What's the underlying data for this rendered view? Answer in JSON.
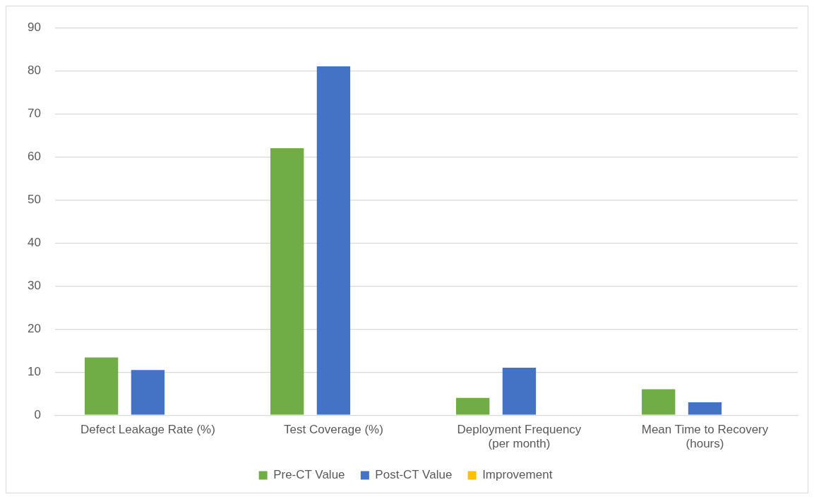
{
  "chart_data": {
    "type": "bar",
    "categories": [
      "Defect Leakage Rate (%)",
      "Test Coverage (%)",
      "Deployment Frequency (per month)",
      "Mean Time to Recovery (hours)"
    ],
    "series": [
      {
        "name": "Pre-CT Value",
        "color": "#70ad47",
        "values": [
          13.4,
          62,
          4,
          6
        ]
      },
      {
        "name": "Post-CT Value",
        "color": "#4472c4",
        "values": [
          10.5,
          81,
          11,
          3
        ]
      },
      {
        "name": "Improvement",
        "color": "#ffc000",
        "values": [
          null,
          null,
          null,
          null
        ]
      }
    ],
    "ylim": [
      0,
      90
    ],
    "yticks": [
      0,
      10,
      20,
      30,
      40,
      50,
      60,
      70,
      80,
      90
    ],
    "grid": "y",
    "legend": "bottom"
  }
}
